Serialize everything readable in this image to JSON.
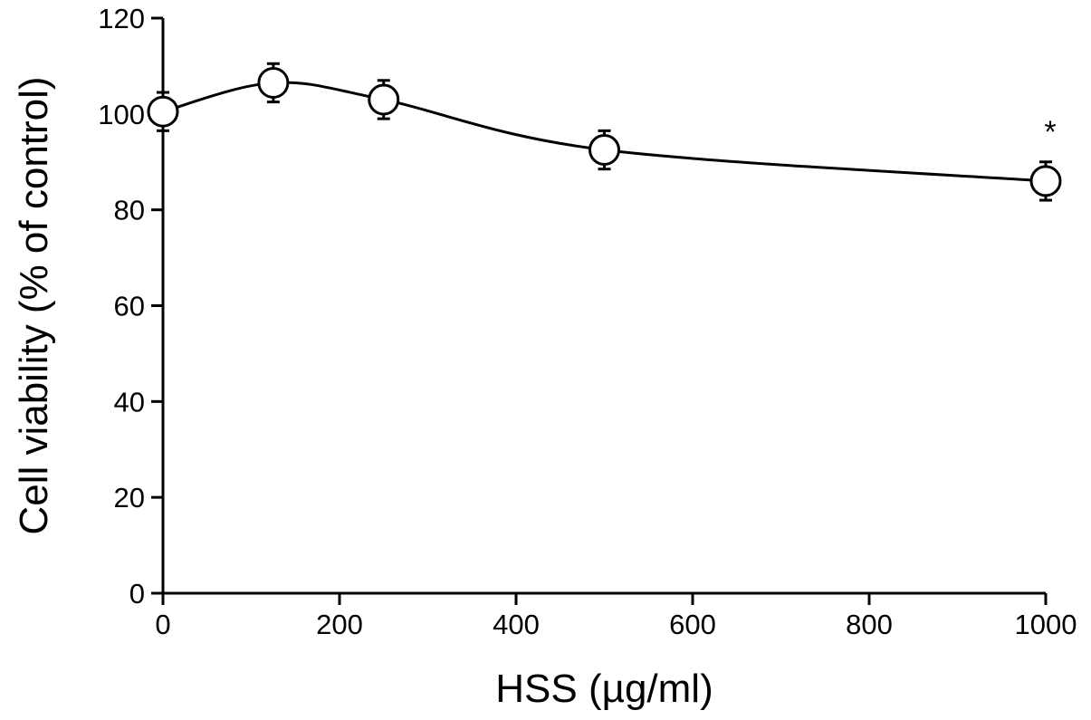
{
  "chart_data": {
    "type": "line",
    "title": "",
    "xlabel": "HSS (µg/ml)",
    "ylabel": "Cell viability (% of control)",
    "xlim": [
      0,
      1000
    ],
    "ylim": [
      0,
      120
    ],
    "x_ticks": [
      0,
      200,
      400,
      600,
      800,
      1000
    ],
    "y_ticks": [
      0,
      20,
      40,
      60,
      80,
      100,
      120
    ],
    "x_tick_labels": [
      "0",
      "200",
      "400",
      "600",
      "800",
      "1000"
    ],
    "y_tick_labels": [
      "0",
      "20",
      "40",
      "60",
      "80",
      "100",
      "120"
    ],
    "grid": false,
    "series": [
      {
        "x": [
          0,
          125,
          250,
          500,
          1000
        ],
        "y": [
          100.5,
          106.5,
          103,
          92.5,
          86
        ],
        "error": [
          4,
          4,
          4,
          4,
          4
        ],
        "marker": "open-circle"
      }
    ],
    "annotations": [
      {
        "text": "*",
        "x": 1000
      }
    ],
    "colors": {
      "line": "#000000",
      "marker_fill": "#ffffff"
    }
  }
}
